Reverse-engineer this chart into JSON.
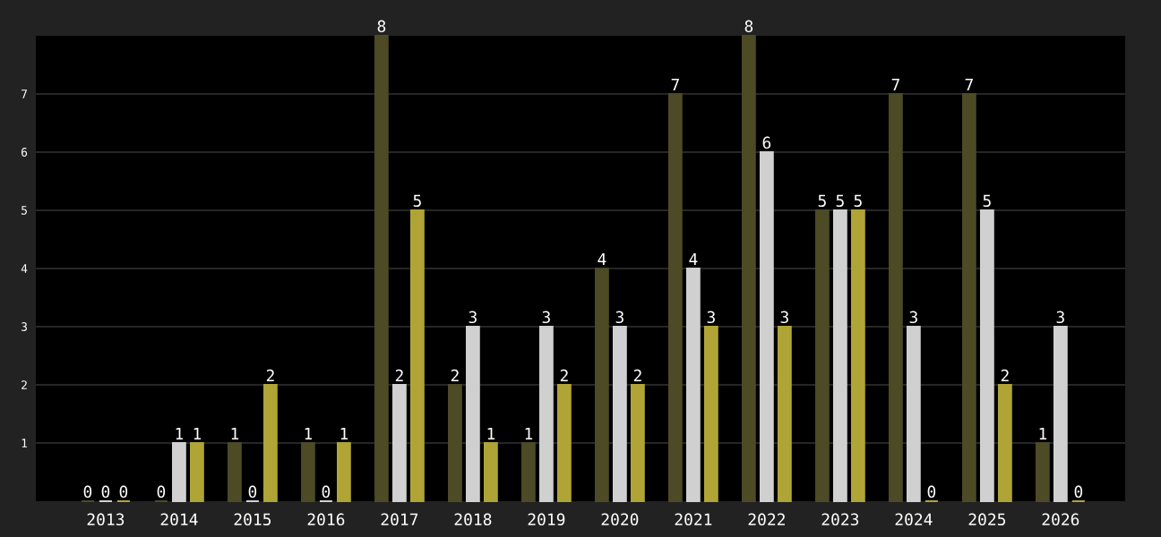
{
  "chart_data": {
    "type": "bar",
    "categories": [
      "2013",
      "2014",
      "2015",
      "2016",
      "2017",
      "2018",
      "2019",
      "2020",
      "2021",
      "2022",
      "2023",
      "2024",
      "2025",
      "2026"
    ],
    "series": [
      {
        "color": "#4d4a26",
        "values": [
          0,
          0,
          1,
          1,
          8,
          2,
          1,
          4,
          7,
          8,
          5,
          7,
          7,
          1
        ]
      },
      {
        "color": "#d0d0d0",
        "values": [
          0,
          1,
          0,
          0,
          2,
          3,
          3,
          3,
          4,
          6,
          5,
          3,
          5,
          3
        ]
      },
      {
        "color": "#b0a437",
        "values": [
          0,
          1,
          2,
          1,
          5,
          1,
          2,
          2,
          3,
          3,
          5,
          0,
          2,
          0
        ]
      }
    ],
    "ylim": [
      0,
      8
    ],
    "yticks": [
      1,
      2,
      3,
      4,
      5,
      6,
      7
    ],
    "grid": "y",
    "data_labels": true
  }
}
